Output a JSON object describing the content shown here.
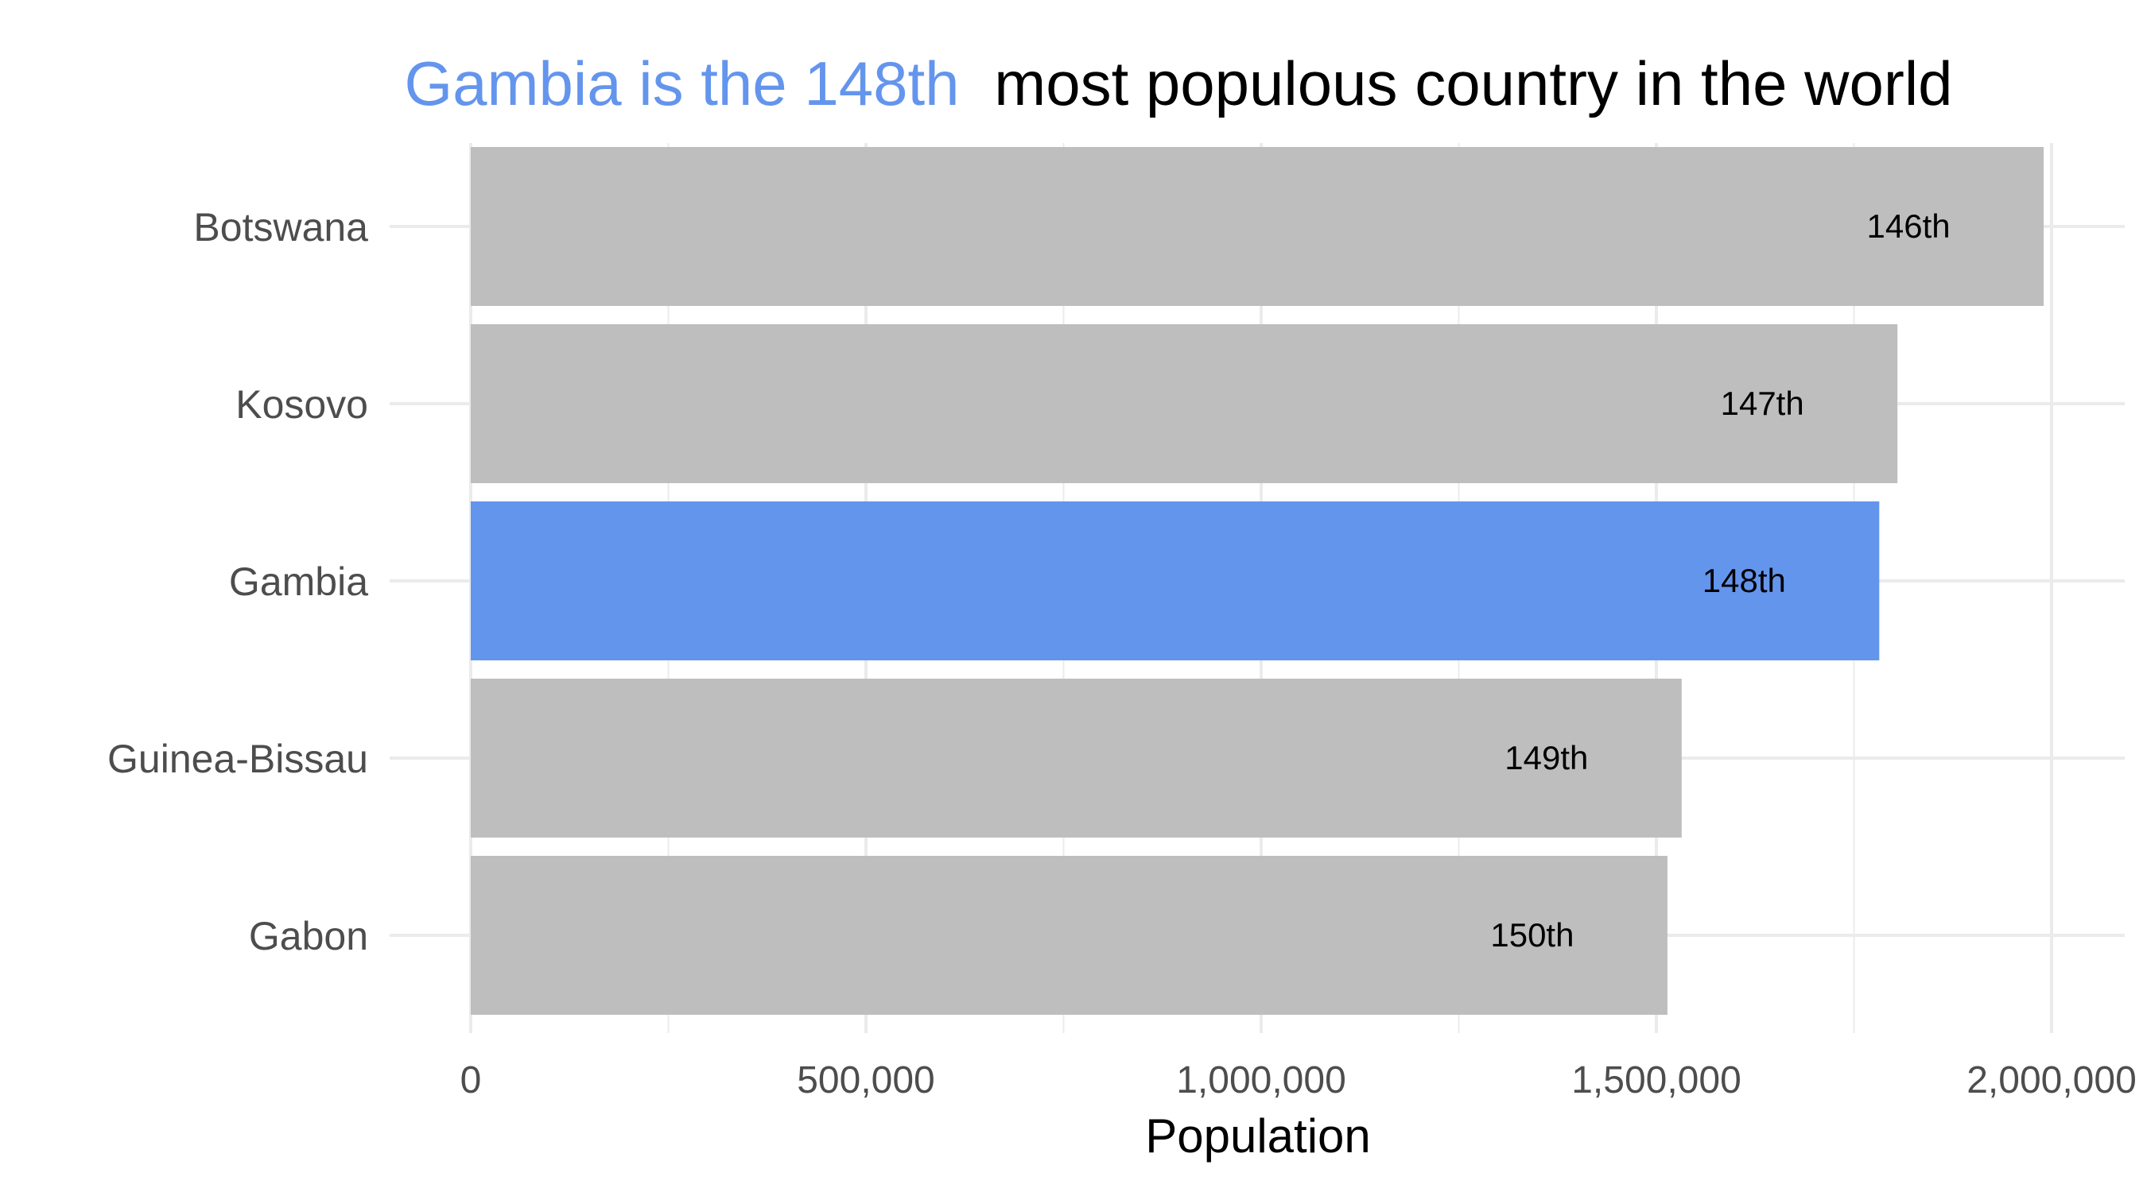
{
  "chart_data": {
    "type": "bar",
    "orientation": "horizontal",
    "title": {
      "highlight": "Gambia is the 148th",
      "rest": "most populous country in the world"
    },
    "categories": [
      "Botswana",
      "Kosovo",
      "Gambia",
      "Guinea-Bissau",
      "Gabon"
    ],
    "values": [
      1990000,
      1805000,
      1782000,
      1532000,
      1514000
    ],
    "bar_labels": [
      "146th",
      "147th",
      "148th",
      "149th",
      "150th"
    ],
    "highlight_category": "Gambia",
    "xlabel": "Population",
    "ylabel": "",
    "xlim": [
      0,
      2000000
    ],
    "xticks": [
      0,
      500000,
      1000000,
      1500000,
      2000000
    ],
    "xtick_labels": [
      "0",
      "500,000",
      "1,000,000",
      "1,500,000",
      "2,000,000"
    ],
    "grid": true,
    "colors": {
      "highlight": "#6495ed",
      "default": "#bebebe",
      "grid": "#ebebeb",
      "title_rest": "#000000"
    }
  }
}
